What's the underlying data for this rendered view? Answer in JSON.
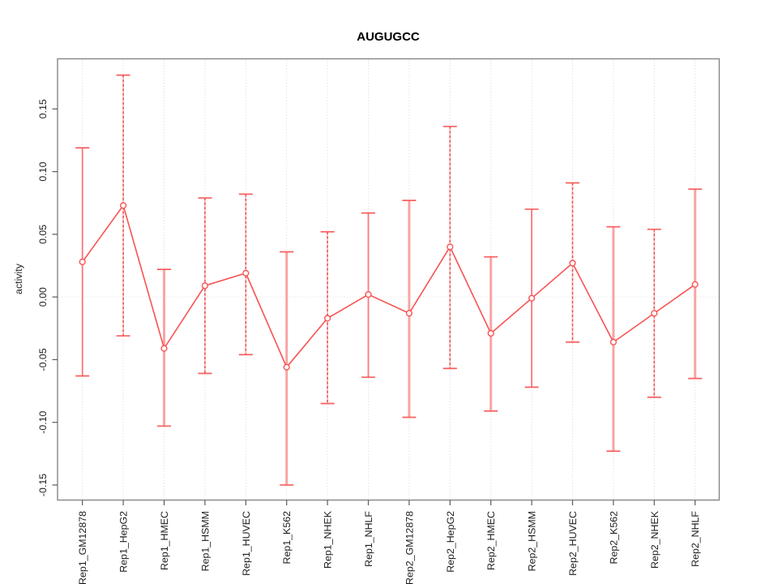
{
  "figure": {
    "background": "#ffffff"
  },
  "chart_data": {
    "type": "line",
    "title": "AUGUGCC",
    "xlabel": "",
    "ylabel": "activity",
    "legend": "none",
    "grid": "vertical-dotted-per-category",
    "zero_line": true,
    "categories": [
      "Rep1_GM12878",
      "Rep1_HepG2",
      "Rep1_HMEC",
      "Rep1_HSMM",
      "Rep1_HUVEC",
      "Rep1_K562",
      "Rep1_NHEK",
      "Rep1_NHLF",
      "Rep2_GM12878",
      "Rep2_HepG2",
      "Rep2_HMEC",
      "Rep2_HSMM",
      "Rep2_HUVEC",
      "Rep2_K562",
      "Rep2_NHEK",
      "Rep2_NHLF"
    ],
    "series": [
      {
        "name": "activity",
        "marker": "open-circle",
        "values": [
          0.028,
          0.073,
          -0.041,
          0.009,
          0.019,
          -0.056,
          -0.017,
          0.002,
          -0.013,
          0.04,
          -0.029,
          -0.001,
          0.027,
          -0.036,
          -0.013,
          0.01
        ],
        "error_high": [
          0.119,
          0.177,
          0.022,
          0.079,
          0.082,
          0.036,
          0.052,
          0.067,
          0.077,
          0.136,
          0.032,
          0.07,
          0.091,
          0.056,
          0.054,
          0.086
        ],
        "error_low": [
          -0.063,
          -0.031,
          -0.103,
          -0.061,
          -0.046,
          -0.15,
          -0.085,
          -0.064,
          -0.096,
          -0.057,
          -0.091,
          -0.072,
          -0.036,
          -0.123,
          -0.08,
          -0.065
        ]
      }
    ],
    "error_bar_styles": [
      "red",
      "dashed",
      "pink",
      "dashed",
      "dashed",
      "pink",
      "dashed",
      "red",
      "pink",
      "dashed",
      "pink",
      "red",
      "dashed",
      "pink",
      "dashed",
      "pink"
    ],
    "yticks": [
      -0.15,
      -0.1,
      -0.05,
      0.0,
      0.05,
      0.1,
      0.15
    ],
    "ytick_labels": [
      "-0.15",
      "-0.10",
      "-0.05",
      "0.00",
      "0.05",
      "0.10",
      "0.15"
    ],
    "ylim": [
      -0.162,
      0.19
    ],
    "xlim": [
      0.41,
      16.59
    ],
    "colors": {
      "line": "#f85353",
      "point": "#f85353",
      "cap": "#f85e5e",
      "bar_pink": "#f9a4a4",
      "bar_red": "#f87878",
      "bar_dash_dark": "#e25050",
      "bar_dash_light": "#ffbcbc",
      "grid": "#d6d6d6",
      "zero_line": "#dcdcdc",
      "box": "#868686",
      "tick": "#5a5a5a",
      "text": "#1c1c1c"
    }
  }
}
